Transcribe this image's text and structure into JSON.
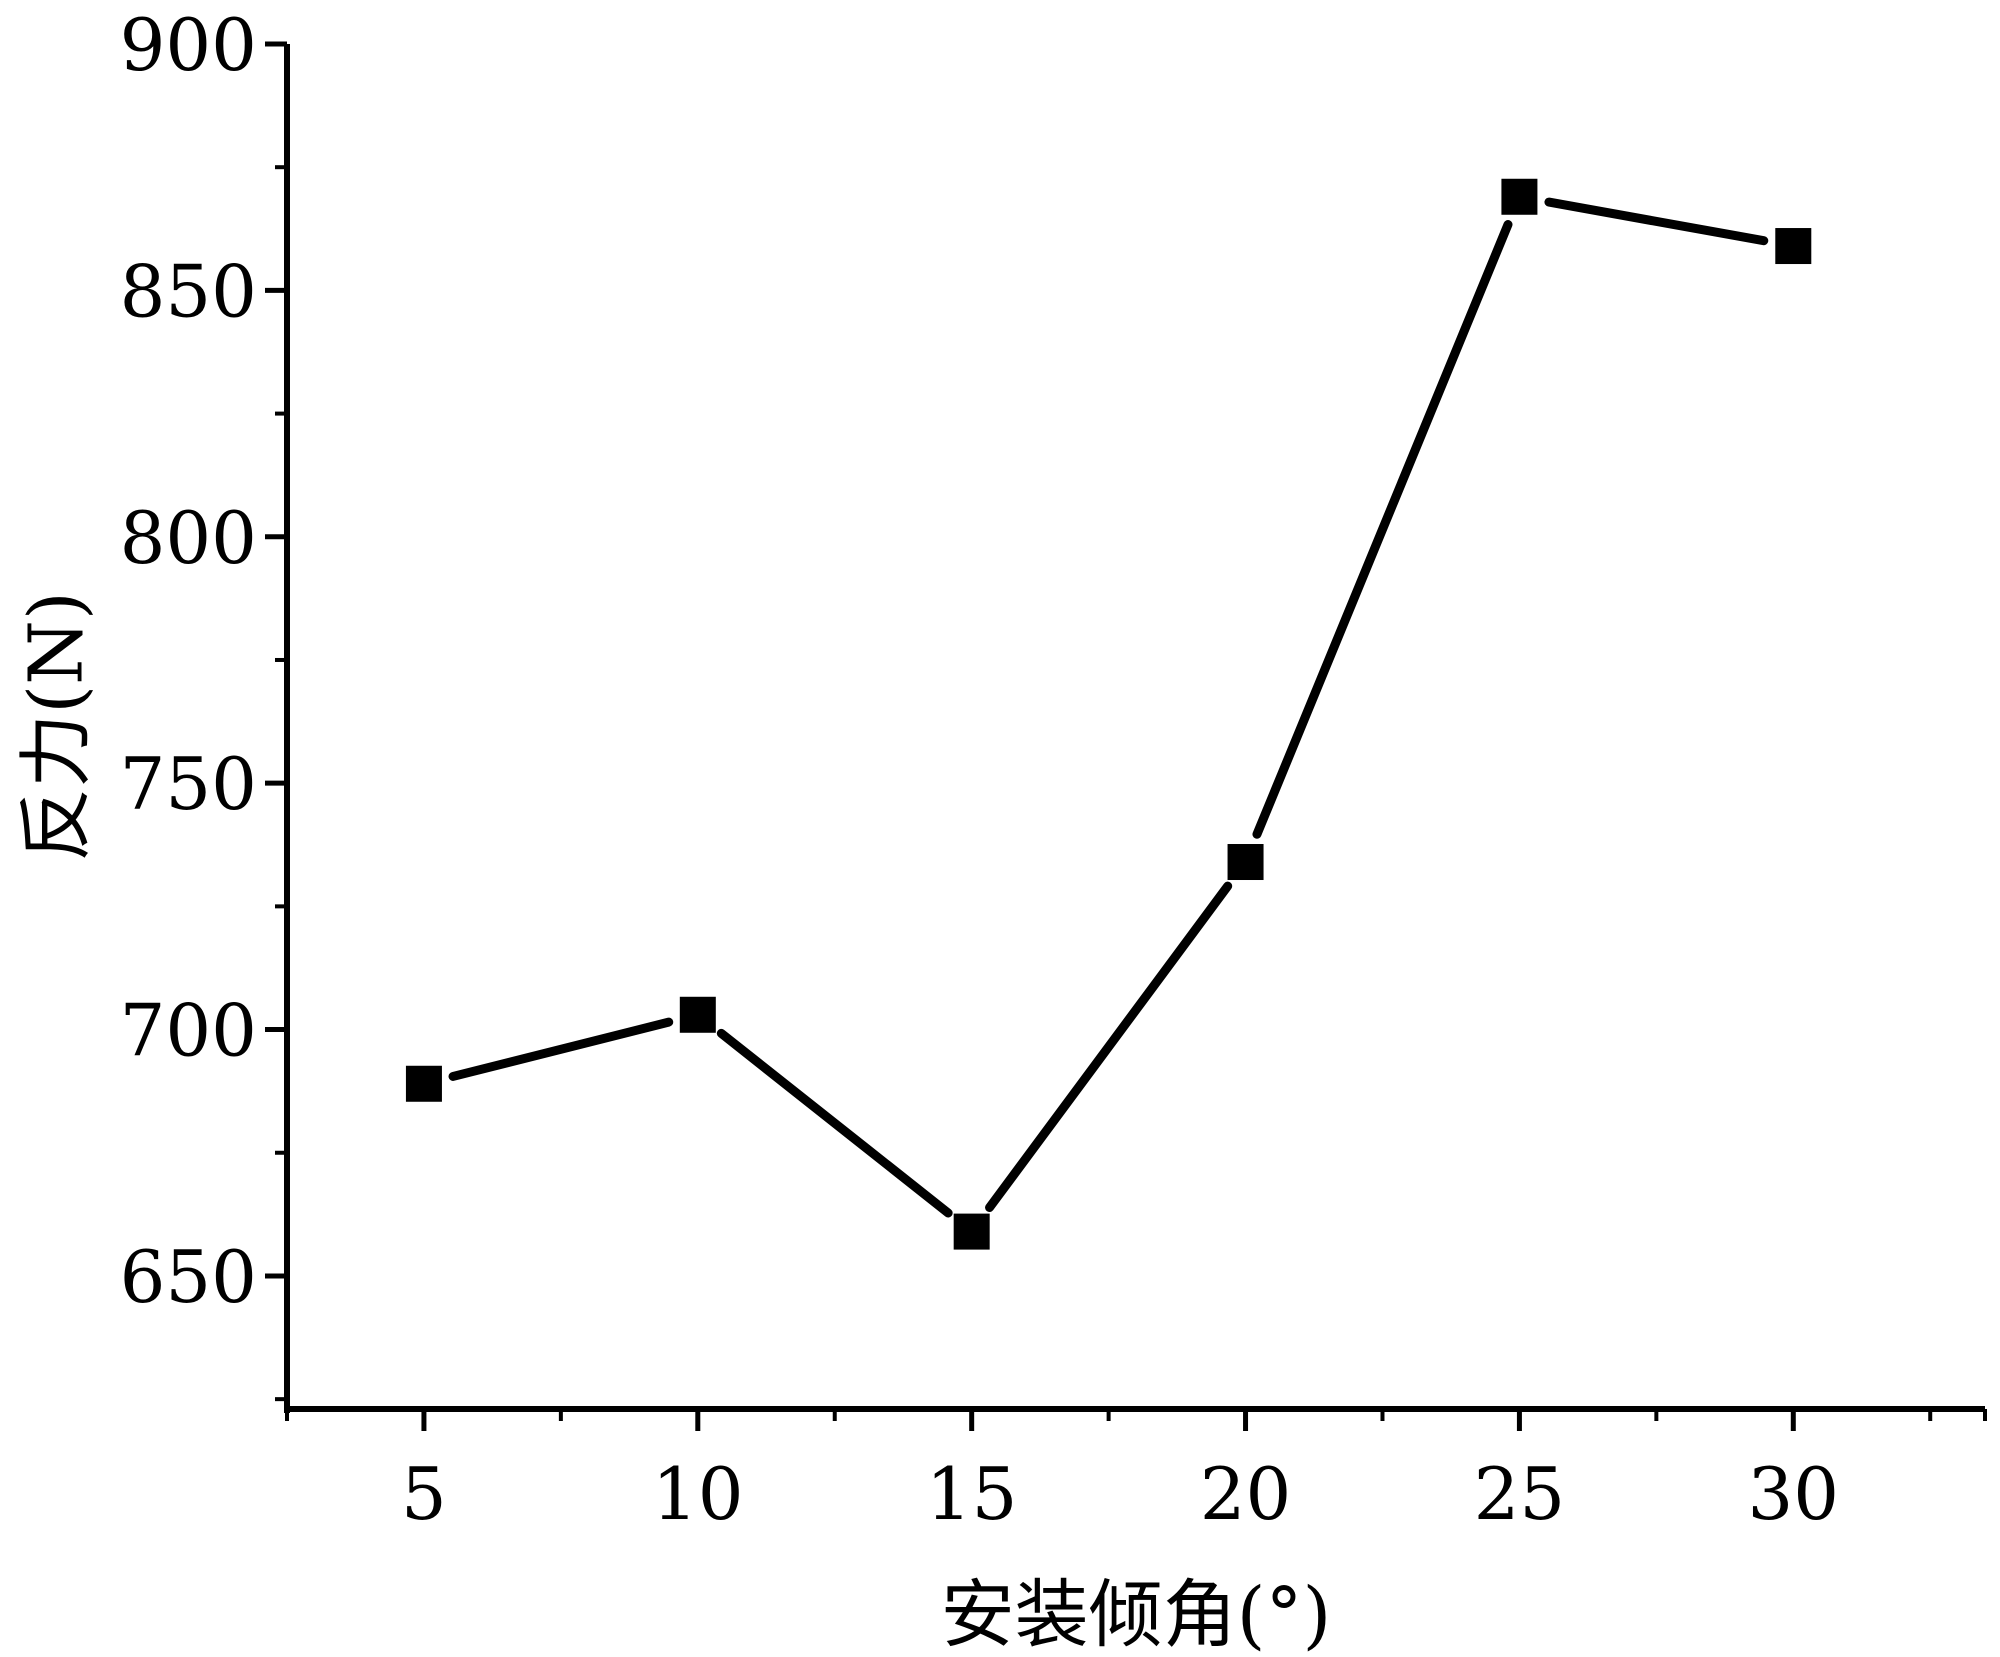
{
  "chart_data": {
    "type": "line",
    "title": "",
    "xlabel": "安装倾角(°)",
    "ylabel": "反力(N)",
    "x": [
      5,
      10,
      15,
      20,
      25,
      30
    ],
    "series": [
      {
        "values": [
          689,
          703,
          659,
          734,
          869,
          859
        ],
        "marker": "square",
        "color": "#000000"
      }
    ],
    "xticks": [
      5,
      10,
      15,
      20,
      25,
      30
    ],
    "yticks": [
      650,
      700,
      750,
      800,
      850,
      900
    ],
    "xlim": [
      2.5,
      33.5
    ],
    "ylim": [
      623,
      900
    ],
    "grid": false,
    "legend": "none"
  }
}
